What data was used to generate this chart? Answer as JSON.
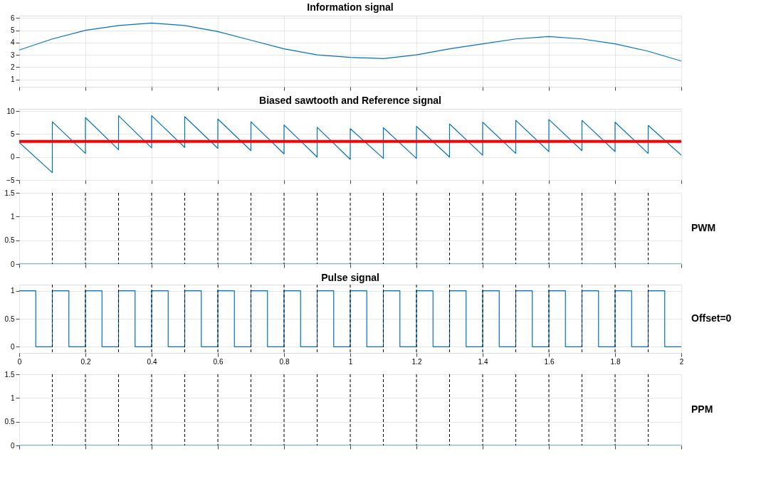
{
  "chart_data": [
    {
      "type": "line",
      "title": "Information signal",
      "xlim": [
        0,
        2
      ],
      "xticks": [
        0,
        0.2,
        0.4,
        0.6,
        0.8,
        1,
        1.2,
        1.4,
        1.6,
        1.8,
        2
      ],
      "ylim": [
        0.4,
        6.2
      ],
      "yticks": [
        1,
        2,
        3,
        4,
        5,
        6
      ],
      "grid": true,
      "tick_labels": "y",
      "series": [
        {
          "color": "#0072bd",
          "x": [
            0,
            0.1,
            0.2,
            0.3,
            0.4,
            0.5,
            0.6,
            0.7,
            0.8,
            0.9,
            1.0,
            1.1,
            1.2,
            1.3,
            1.4,
            1.5,
            1.6,
            1.7,
            1.8,
            1.9,
            2.0
          ],
          "values": [
            3.4,
            4.3,
            5.0,
            5.4,
            5.6,
            5.4,
            4.9,
            4.2,
            3.5,
            3.0,
            2.8,
            2.7,
            3.0,
            3.5,
            3.9,
            4.3,
            4.5,
            4.3,
            3.9,
            3.3,
            2.5
          ]
        }
      ]
    },
    {
      "type": "line",
      "title": "Biased sawtooth and Reference signal",
      "xlim": [
        0,
        2
      ],
      "xticks": [
        0,
        0.2,
        0.4,
        0.6,
        0.8,
        1,
        1.2,
        1.4,
        1.6,
        1.8,
        2
      ],
      "ylim": [
        -5,
        10.5
      ],
      "yticks": [
        -5,
        0,
        5,
        10
      ],
      "grid": true,
      "tick_labels": "y",
      "series": [
        {
          "color": "#0072bd",
          "x": [
            0,
            0.1,
            0.1,
            0.2,
            0.2,
            0.3,
            0.3,
            0.4,
            0.4,
            0.5,
            0.5,
            0.6,
            0.6,
            0.7,
            0.7,
            0.8,
            0.8,
            0.9,
            0.9,
            1.0,
            1.0,
            1.1,
            1.1,
            1.2,
            1.2,
            1.3,
            1.3,
            1.4,
            1.4,
            1.5,
            1.5,
            1.6,
            1.6,
            1.7,
            1.7,
            1.8,
            1.8,
            1.9,
            1.9,
            2.0
          ],
          "values": [
            3.2,
            -3.4,
            7.7,
            0.8,
            8.6,
            1.6,
            9.0,
            2.0,
            9.0,
            2.1,
            8.8,
            1.9,
            8.3,
            1.4,
            7.7,
            0.7,
            7.0,
            0.0,
            6.5,
            -0.5,
            6.2,
            -0.3,
            6.4,
            -0.3,
            6.7,
            0.0,
            7.2,
            0.4,
            7.6,
            0.8,
            8.0,
            1.2,
            8.2,
            1.4,
            8.0,
            1.2,
            7.6,
            0.8,
            6.9,
            0.4
          ]
        }
      ],
      "ref_lines": [
        {
          "axis": "y",
          "value": 3.4,
          "color": "#ff0000",
          "line_style": "solid"
        }
      ]
    },
    {
      "type": "line",
      "xlim": [
        0,
        2
      ],
      "xticks": [
        0,
        0.2,
        0.4,
        0.6,
        0.8,
        1,
        1.2,
        1.4,
        1.6,
        1.8,
        2
      ],
      "ylim": [
        0,
        1.5
      ],
      "yticks": [
        0,
        0.5,
        1,
        1.5
      ],
      "grid": true,
      "tick_labels": "y",
      "annotations": [
        "PWM"
      ],
      "series": [
        {
          "color": "#0072bd",
          "x": [
            0,
            2
          ],
          "values": [
            0,
            0
          ]
        }
      ],
      "ref_lines": [
        {
          "axis": "x",
          "value": 0.1,
          "color": "#000000",
          "line_style": "dashed"
        },
        {
          "axis": "x",
          "value": 0.2,
          "color": "#000000",
          "line_style": "dashed"
        },
        {
          "axis": "x",
          "value": 0.3,
          "color": "#000000",
          "line_style": "dashed"
        },
        {
          "axis": "x",
          "value": 0.4,
          "color": "#000000",
          "line_style": "dashed"
        },
        {
          "axis": "x",
          "value": 0.5,
          "color": "#000000",
          "line_style": "dashed"
        },
        {
          "axis": "x",
          "value": 0.6,
          "color": "#000000",
          "line_style": "dashed"
        },
        {
          "axis": "x",
          "value": 0.7,
          "color": "#000000",
          "line_style": "dashed"
        },
        {
          "axis": "x",
          "value": 0.8,
          "color": "#000000",
          "line_style": "dashed"
        },
        {
          "axis": "x",
          "value": 0.9,
          "color": "#000000",
          "line_style": "dashed"
        },
        {
          "axis": "x",
          "value": 1.0,
          "color": "#000000",
          "line_style": "dashed"
        },
        {
          "axis": "x",
          "value": 1.1,
          "color": "#000000",
          "line_style": "dashed"
        },
        {
          "axis": "x",
          "value": 1.2,
          "color": "#000000",
          "line_style": "dashed"
        },
        {
          "axis": "x",
          "value": 1.3,
          "color": "#000000",
          "line_style": "dashed"
        },
        {
          "axis": "x",
          "value": 1.4,
          "color": "#000000",
          "line_style": "dashed"
        },
        {
          "axis": "x",
          "value": 1.5,
          "color": "#000000",
          "line_style": "dashed"
        },
        {
          "axis": "x",
          "value": 1.6,
          "color": "#000000",
          "line_style": "dashed"
        },
        {
          "axis": "x",
          "value": 1.7,
          "color": "#000000",
          "line_style": "dashed"
        },
        {
          "axis": "x",
          "value": 1.8,
          "color": "#000000",
          "line_style": "dashed"
        },
        {
          "axis": "x",
          "value": 1.9,
          "color": "#000000",
          "line_style": "dashed"
        }
      ]
    },
    {
      "type": "step",
      "title": "Pulse signal",
      "xlim": [
        0,
        2
      ],
      "xticks": [
        0,
        0.2,
        0.4,
        0.6,
        0.8,
        1,
        1.2,
        1.4,
        1.6,
        1.8,
        2
      ],
      "ylim": [
        -0.11,
        1.11
      ],
      "yticks": [
        0,
        0.5,
        1
      ],
      "grid": true,
      "annotations": [
        "Offset=0"
      ],
      "series": [
        {
          "color": "#0072bd",
          "x": [
            0,
            0.05,
            0.1,
            0.15,
            0.2,
            0.25,
            0.3,
            0.35,
            0.4,
            0.45,
            0.5,
            0.55,
            0.6,
            0.65,
            0.7,
            0.75,
            0.8,
            0.85,
            0.9,
            0.95,
            1.0,
            1.05,
            1.1,
            1.15,
            1.2,
            1.25,
            1.3,
            1.35,
            1.4,
            1.45,
            1.5,
            1.55,
            1.6,
            1.65,
            1.7,
            1.75,
            1.8,
            1.85,
            1.9,
            1.95,
            2.0
          ],
          "values": [
            1,
            0,
            1,
            0,
            1,
            0,
            1,
            0,
            1,
            0,
            1,
            0,
            1,
            0,
            1,
            0,
            1,
            0,
            1,
            0,
            1,
            0,
            1,
            0,
            1,
            0,
            1,
            0,
            1,
            0,
            1,
            0,
            1,
            0,
            1,
            0,
            1,
            0,
            1,
            0,
            0
          ]
        }
      ],
      "ref_lines": [
        {
          "axis": "x",
          "value": 0.1,
          "color": "#000000",
          "line_style": "dashed"
        },
        {
          "axis": "x",
          "value": 0.2,
          "color": "#000000",
          "line_style": "dashed"
        },
        {
          "axis": "x",
          "value": 0.3,
          "color": "#000000",
          "line_style": "dashed"
        },
        {
          "axis": "x",
          "value": 0.4,
          "color": "#000000",
          "line_style": "dashed"
        },
        {
          "axis": "x",
          "value": 0.5,
          "color": "#000000",
          "line_style": "dashed"
        },
        {
          "axis": "x",
          "value": 0.6,
          "color": "#000000",
          "line_style": "dashed"
        },
        {
          "axis": "x",
          "value": 0.7,
          "color": "#000000",
          "line_style": "dashed"
        },
        {
          "axis": "x",
          "value": 0.8,
          "color": "#000000",
          "line_style": "dashed"
        },
        {
          "axis": "x",
          "value": 0.9,
          "color": "#000000",
          "line_style": "dashed"
        },
        {
          "axis": "x",
          "value": 1.0,
          "color": "#000000",
          "line_style": "dashed"
        },
        {
          "axis": "x",
          "value": 1.1,
          "color": "#000000",
          "line_style": "dashed"
        },
        {
          "axis": "x",
          "value": 1.2,
          "color": "#000000",
          "line_style": "dashed"
        },
        {
          "axis": "x",
          "value": 1.3,
          "color": "#000000",
          "line_style": "dashed"
        },
        {
          "axis": "x",
          "value": 1.4,
          "color": "#000000",
          "line_style": "dashed"
        },
        {
          "axis": "x",
          "value": 1.5,
          "color": "#000000",
          "line_style": "dashed"
        },
        {
          "axis": "x",
          "value": 1.6,
          "color": "#000000",
          "line_style": "dashed"
        },
        {
          "axis": "x",
          "value": 1.7,
          "color": "#000000",
          "line_style": "dashed"
        },
        {
          "axis": "x",
          "value": 1.8,
          "color": "#000000",
          "line_style": "dashed"
        },
        {
          "axis": "x",
          "value": 1.9,
          "color": "#000000",
          "line_style": "dashed"
        }
      ]
    },
    {
      "type": "line",
      "xlim": [
        0,
        2
      ],
      "xticks": [
        0,
        0.2,
        0.4,
        0.6,
        0.8,
        1,
        1.2,
        1.4,
        1.6,
        1.8,
        2
      ],
      "ylim": [
        0,
        1.5
      ],
      "yticks": [
        0,
        0.5,
        1,
        1.5
      ],
      "grid": true,
      "tick_labels": "y",
      "annotations": [
        "PPM"
      ],
      "series": [
        {
          "color": "#0072bd",
          "x": [
            0,
            2
          ],
          "values": [
            0,
            0
          ]
        }
      ],
      "ref_lines": [
        {
          "axis": "x",
          "value": 0.1,
          "color": "#000000",
          "line_style": "dashed"
        },
        {
          "axis": "x",
          "value": 0.2,
          "color": "#000000",
          "line_style": "dashed"
        },
        {
          "axis": "x",
          "value": 0.3,
          "color": "#000000",
          "line_style": "dashed"
        },
        {
          "axis": "x",
          "value": 0.4,
          "color": "#000000",
          "line_style": "dashed"
        },
        {
          "axis": "x",
          "value": 0.5,
          "color": "#000000",
          "line_style": "dashed"
        },
        {
          "axis": "x",
          "value": 0.6,
          "color": "#000000",
          "line_style": "dashed"
        },
        {
          "axis": "x",
          "value": 0.7,
          "color": "#000000",
          "line_style": "dashed"
        },
        {
          "axis": "x",
          "value": 0.8,
          "color": "#000000",
          "line_style": "dashed"
        },
        {
          "axis": "x",
          "value": 0.9,
          "color": "#000000",
          "line_style": "dashed"
        },
        {
          "axis": "x",
          "value": 1.0,
          "color": "#000000",
          "line_style": "dashed"
        },
        {
          "axis": "x",
          "value": 1.1,
          "color": "#000000",
          "line_style": "dashed"
        },
        {
          "axis": "x",
          "value": 1.2,
          "color": "#000000",
          "line_style": "dashed"
        },
        {
          "axis": "x",
          "value": 1.3,
          "color": "#000000",
          "line_style": "dashed"
        },
        {
          "axis": "x",
          "value": 1.4,
          "color": "#000000",
          "line_style": "dashed"
        },
        {
          "axis": "x",
          "value": 1.5,
          "color": "#000000",
          "line_style": "dashed"
        },
        {
          "axis": "x",
          "value": 1.6,
          "color": "#000000",
          "line_style": "dashed"
        },
        {
          "axis": "x",
          "value": 1.7,
          "color": "#000000",
          "line_style": "dashed"
        },
        {
          "axis": "x",
          "value": 1.8,
          "color": "#000000",
          "line_style": "dashed"
        },
        {
          "axis": "x",
          "value": 1.9,
          "color": "#000000",
          "line_style": "dashed"
        }
      ]
    }
  ]
}
